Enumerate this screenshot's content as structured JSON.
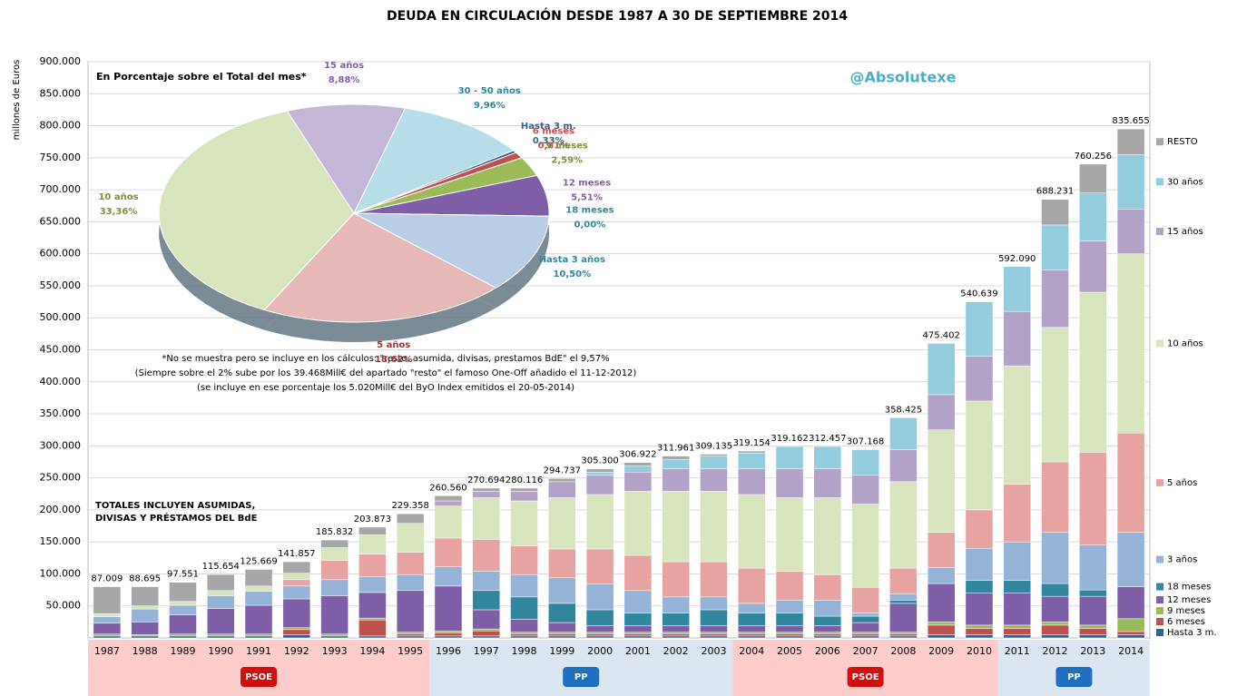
{
  "chart_data": [
    {
      "type": "stacked_bar",
      "title": "DEUDA EN CIRCULACIÓN DESDE 1987 A 30 DE SEPTIEMBRE 2014",
      "ylabel": "millones de Euros",
      "watermark": "@Absolutexe",
      "note": [
        "TOTALES INCLUYEN ASUMIDAS,",
        "DIVISAS Y PRÉSTAMOS  DEL BdE"
      ],
      "periods": [
        {
          "label": "PSOE",
          "color": "#ffcccc"
        },
        {
          "label": "PP",
          "color": "#dce6f0"
        },
        {
          "label": "PSOE",
          "color": "#ffcccc"
        },
        {
          "label": "PP",
          "color": "#dce6f0"
        }
      ],
      "categories": [
        "1987",
        "1988",
        "1989",
        "1990",
        "1991",
        "1992",
        "1993",
        "1994",
        "1995",
        "1996",
        "1997",
        "1998",
        "1999",
        "2000",
        "2001",
        "2002",
        "2003",
        "2004",
        "2005",
        "2006",
        "2007",
        "2008",
        "2009",
        "2010",
        "2011",
        "2012",
        "2013",
        "2014"
      ],
      "ylim": [
        0,
        900000
      ],
      "yticks": [
        {
          "value": 50000,
          "label": "50.000"
        },
        {
          "value": 100000,
          "label": "100.000"
        },
        {
          "value": 150000,
          "label": "150.000"
        },
        {
          "value": 200000,
          "label": "200.000"
        },
        {
          "value": 250000,
          "label": "250.000"
        },
        {
          "value": 300000,
          "label": "300.000"
        },
        {
          "value": 350000,
          "label": "350.000"
        },
        {
          "value": 400000,
          "label": "400.000"
        },
        {
          "value": 450000,
          "label": "450.000"
        },
        {
          "value": 500000,
          "label": "500.000"
        },
        {
          "value": 550000,
          "label": "550.000"
        },
        {
          "value": 600000,
          "label": "600.000"
        },
        {
          "value": 650000,
          "label": "650.000"
        },
        {
          "value": 700000,
          "label": "700.000"
        },
        {
          "value": 750000,
          "label": "750.000"
        },
        {
          "value": 800000,
          "label": "800.000"
        },
        {
          "value": 850000,
          "label": "850.000"
        },
        {
          "value": 900000,
          "label": "900.000"
        }
      ],
      "grid": true,
      "series": [
        {
          "name": "Hasta 3 m.",
          "color": "#376092",
          "values": [
            3000,
            3000,
            3000,
            3000,
            3000,
            5000,
            3000,
            3000,
            3000,
            3000,
            3000,
            3000,
            3000,
            3000,
            3000,
            3000,
            3000,
            3000,
            3000,
            3000,
            3000,
            3000,
            5000,
            5000,
            5000,
            5000,
            5000,
            5000
          ]
        },
        {
          "name": "6 meses",
          "color": "#c0504d",
          "values": [
            0,
            0,
            0,
            0,
            0,
            8000,
            0,
            25000,
            3000,
            5000,
            8000,
            3000,
            3000,
            3000,
            3000,
            3000,
            3000,
            3000,
            3000,
            3000,
            3000,
            3000,
            15000,
            10000,
            10000,
            15000,
            10000,
            5000
          ]
        },
        {
          "name": "9 meses",
          "color": "#9bbb59",
          "values": [
            3000,
            2000,
            3000,
            3000,
            3000,
            3000,
            3000,
            3000,
            3000,
            3000,
            3000,
            3000,
            3000,
            3000,
            3000,
            3000,
            3000,
            3000,
            3000,
            3000,
            3000,
            3000,
            5000,
            5000,
            5000,
            5000,
            5000,
            20000
          ]
        },
        {
          "name": "12 meses",
          "color": "#7f5ea8",
          "values": [
            17000,
            20000,
            30000,
            40000,
            45000,
            45000,
            60000,
            40000,
            65000,
            70000,
            30000,
            20000,
            15000,
            10000,
            10000,
            10000,
            10000,
            10000,
            10000,
            10000,
            15000,
            45000,
            60000,
            50000,
            50000,
            40000,
            45000,
            50000
          ]
        },
        {
          "name": "18 meses",
          "color": "#31859c",
          "values": [
            0,
            0,
            0,
            0,
            0,
            0,
            0,
            0,
            0,
            0,
            30000,
            35000,
            30000,
            25000,
            20000,
            20000,
            25000,
            20000,
            20000,
            15000,
            10000,
            5000,
            0,
            20000,
            20000,
            20000,
            10000,
            0
          ]
        },
        {
          "name": "3 años",
          "color": "#95b3d7",
          "values": [
            10000,
            20000,
            15000,
            20000,
            22000,
            20000,
            25000,
            25000,
            25000,
            30000,
            30000,
            35000,
            40000,
            40000,
            35000,
            25000,
            20000,
            15000,
            20000,
            25000,
            5000,
            10000,
            25000,
            50000,
            60000,
            80000,
            70000,
            85000
          ]
        },
        {
          "name": "5 años",
          "color": "#e6a3a2",
          "values": [
            0,
            0,
            0,
            0,
            0,
            10000,
            30000,
            35000,
            35000,
            45000,
            50000,
            45000,
            45000,
            55000,
            55000,
            55000,
            55000,
            55000,
            45000,
            40000,
            40000,
            40000,
            55000,
            60000,
            90000,
            110000,
            145000,
            155000
          ]
        },
        {
          "name": "10 años",
          "color": "#d7e4bd",
          "values": [
            5000,
            5000,
            6000,
            8000,
            8000,
            10000,
            20000,
            30000,
            45000,
            50000,
            65000,
            70000,
            80000,
            85000,
            100000,
            110000,
            110000,
            115000,
            115000,
            120000,
            130000,
            135000,
            160000,
            170000,
            185000,
            210000,
            250000,
            280000
          ]
        },
        {
          "name": "15 años",
          "color": "#b3a2c7",
          "values": [
            0,
            0,
            0,
            0,
            0,
            0,
            0,
            0,
            0,
            8000,
            10000,
            15000,
            25000,
            30000,
            30000,
            35000,
            35000,
            40000,
            45000,
            45000,
            45000,
            50000,
            55000,
            70000,
            85000,
            90000,
            80000,
            70000
          ]
        },
        {
          "name": "30 años",
          "color": "#93cddd",
          "values": [
            0,
            0,
            0,
            0,
            0,
            0,
            0,
            0,
            0,
            0,
            0,
            0,
            0,
            5000,
            10000,
            15000,
            20000,
            25000,
            35000,
            35000,
            40000,
            50000,
            80000,
            85000,
            70000,
            70000,
            75000,
            85000
          ]
        },
        {
          "name": "RESTO",
          "color": "#a6a6a6",
          "values": [
            42000,
            30000,
            30000,
            25000,
            26000,
            18000,
            12000,
            12000,
            15000,
            8000,
            5000,
            5000,
            5000,
            5000,
            5000,
            5000,
            3000,
            3000,
            0,
            0,
            0,
            0,
            0,
            0,
            0,
            40000,
            45000,
            40000
          ]
        }
      ],
      "totals": {
        "values": [
          87009,
          88695,
          97551,
          115654,
          125669,
          141857,
          185832,
          203873,
          229358,
          260560,
          270694,
          280116,
          294737,
          305300,
          306922,
          311961,
          309135,
          319154,
          319162,
          312457,
          307168,
          358425,
          475402,
          540639,
          592090,
          688231,
          760256,
          835655
        ],
        "value_labels": [
          "87.009",
          "88.695",
          "97.551",
          "115.654",
          "125.669",
          "141.857",
          "185.832",
          "203.873",
          "229.358",
          "260.560",
          "270.694",
          "280.116",
          "294.737",
          "305.300",
          "306.922",
          "311.961",
          "309.135",
          "319.154",
          "319.162",
          "312.457",
          "307.168",
          "358.425",
          "475.402",
          "540.639",
          "592.090",
          "688.231",
          "760.256",
          "835.655"
        ]
      }
    },
    {
      "type": "pie",
      "title": "En Porcentaje sobre el Total del mes*",
      "notes": [
        "*No se muestra pero se incluye en los cálculos: \"resto, asumida, divisas, prestamos BdE\" el 9,57%",
        "(Siempre sobre el 2% sube por los 39.468Mill€ del apartado  \"resto\" el famoso  One-Off añadido el 11-12-2012)",
        "(se incluye en ese porcentaje los 5.020Mill€ del ByO Index emitidos el 20-05-2014)"
      ],
      "categories": [
        "15 años",
        "30 - 50 años",
        "Hasta 3 m.",
        "6 meses",
        "9 meses",
        "12 meses",
        "18 meses",
        "Hasta 3 años",
        "5 años",
        "10 años"
      ],
      "values": [
        8.88,
        9.96,
        0.33,
        0.81,
        2.59,
        5.51,
        0.0,
        10.5,
        18.62,
        33.36
      ],
      "value_labels": [
        "8,88%",
        "9,96%",
        "0,33%",
        "0,81%",
        "2,59%",
        "5,51%",
        "0,00%",
        "10,50%",
        "18,62%",
        "33,36%"
      ],
      "colors": [
        "#c3b6d6",
        "#b7dde8",
        "#376092",
        "#c0504d",
        "#9bbb59",
        "#7f5ea8",
        "#31859c",
        "#b9cde5",
        "#e6b9b8",
        "#d7e4bd"
      ],
      "label_colors": [
        "#7f5ea8",
        "#31859c",
        "#376092",
        "#c0504d",
        "#77933c",
        "#7f5ea8",
        "#31859c",
        "#31859c",
        "#953735",
        "#77933c"
      ]
    }
  ]
}
